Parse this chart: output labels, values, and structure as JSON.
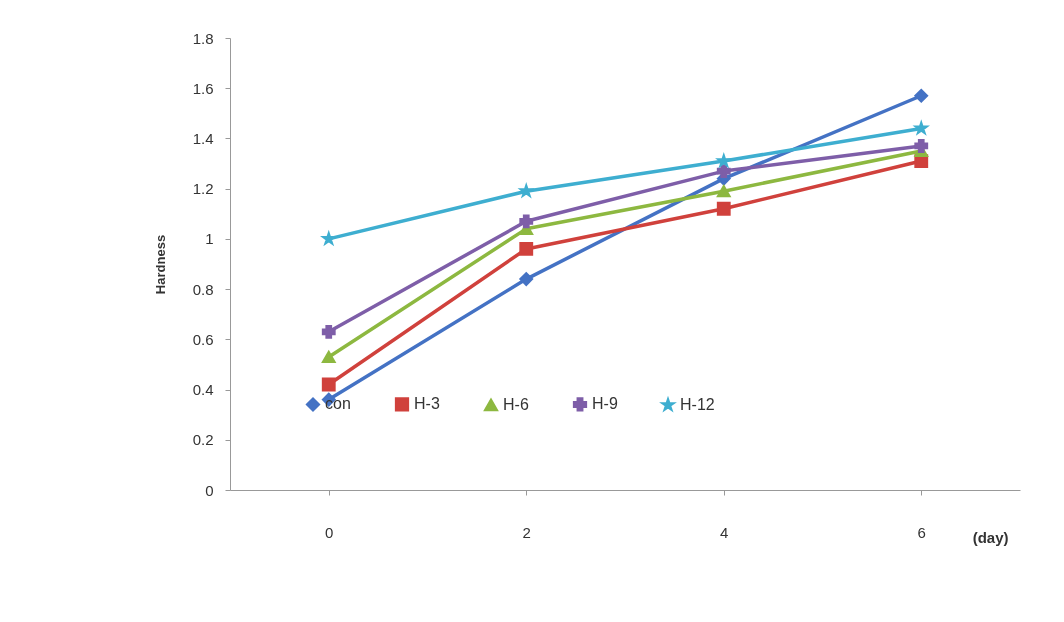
{
  "chart_data": {
    "type": "line",
    "xlabel": "(day)",
    "ylabel": "Hardness",
    "categories": [
      "0",
      "2",
      "4",
      "6"
    ],
    "ylim": [
      0,
      1.8
    ],
    "yticks": [
      0,
      0.2,
      0.4,
      0.6,
      0.8,
      1,
      1.2,
      1.4,
      1.6,
      1.8
    ],
    "grid": false,
    "legend": "bottom left",
    "line_style": "solid",
    "series": [
      {
        "name": "con",
        "color": "#4472c4",
        "marker": "diamond",
        "values": [
          0.36,
          0.84,
          1.24,
          1.57
        ]
      },
      {
        "name": "H-3",
        "color": "#d0413c",
        "marker": "square",
        "values": [
          0.42,
          0.96,
          1.12,
          1.31
        ]
      },
      {
        "name": "H-6",
        "color": "#8db840",
        "marker": "triangle",
        "values": [
          0.53,
          1.04,
          1.19,
          1.35
        ]
      },
      {
        "name": "H-9",
        "color": "#7e5ea8",
        "marker": "cross",
        "values": [
          0.63,
          1.07,
          1.27,
          1.37
        ]
      },
      {
        "name": "H-12",
        "color": "#3eaed0",
        "marker": "star",
        "values": [
          1.0,
          1.19,
          1.31,
          1.44
        ]
      }
    ]
  }
}
